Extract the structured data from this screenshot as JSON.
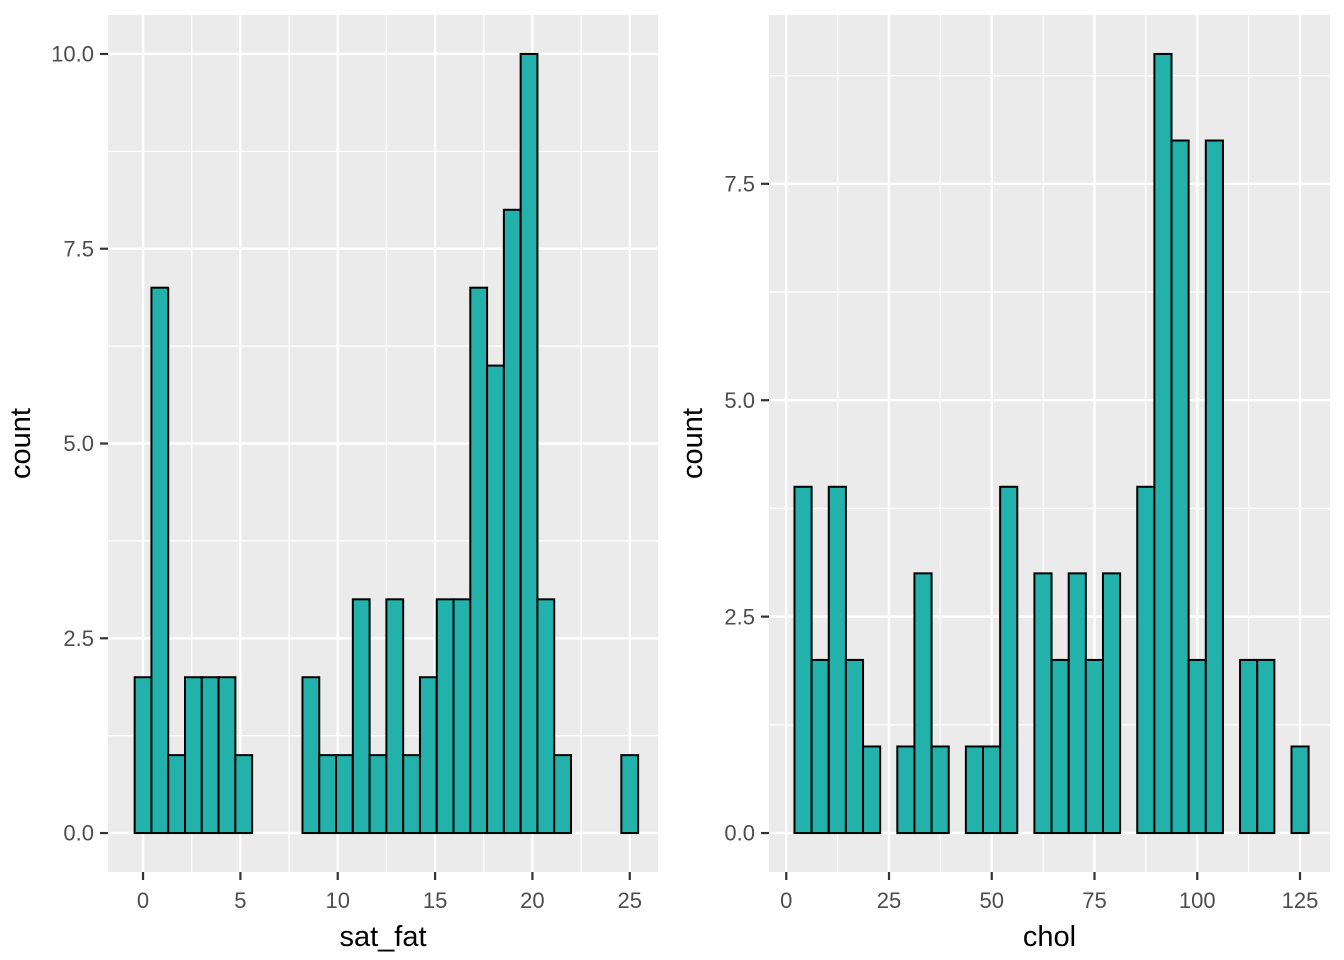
{
  "figure": {
    "description": "Two side-by-side ggplot-style histograms",
    "background": "#FFFFFF"
  },
  "theme": {
    "panel_background": "#EBEBEB",
    "grid_major_color": "#FFFFFF",
    "grid_minor_color": "#FFFFFF",
    "bar_fill": "#22B2AB",
    "bar_stroke": "#000000",
    "axis_tick_color": "#333333",
    "tick_label_color": "#4D4D4D",
    "axis_title_color": "#000000"
  },
  "chart_data": [
    {
      "type": "bar",
      "variant": "histogram",
      "title": "",
      "xlabel": "sat_fat",
      "ylabel": "count",
      "legend": "none",
      "grid": true,
      "bin_start": -0.431,
      "bin_width": 0.862,
      "counts": [
        2,
        7,
        1,
        2,
        2,
        2,
        1,
        0,
        0,
        0,
        2,
        1,
        1,
        3,
        1,
        3,
        1,
        2,
        3,
        3,
        7,
        6,
        8,
        10,
        3,
        1,
        0,
        0,
        0,
        1
      ],
      "n_total": 73,
      "x_major_ticks": [
        0,
        5,
        10,
        15,
        20,
        25
      ],
      "x_tick_labels": [
        "0",
        "5",
        "10",
        "15",
        "20",
        "25"
      ],
      "x_minor_ticks": [
        2.5,
        7.5,
        12.5,
        17.5,
        22.5
      ],
      "y_major_ticks": [
        0,
        2.5,
        5,
        7.5,
        10
      ],
      "y_tick_labels": [
        "0.0",
        "2.5",
        "5.0",
        "7.5",
        "10.0"
      ],
      "y_minor_ticks": [
        1.25,
        3.75,
        6.25,
        8.75
      ],
      "xlim": [
        -1.8,
        26.45
      ],
      "ylim": [
        -0.5,
        10.5
      ]
    },
    {
      "type": "bar",
      "variant": "histogram",
      "title": "",
      "xlabel": "chol",
      "ylabel": "count",
      "legend": "none",
      "grid": true,
      "bin_start": 2.0,
      "bin_width": 4.17,
      "counts": [
        4,
        2,
        4,
        2,
        1,
        0,
        1,
        3,
        1,
        0,
        1,
        1,
        4,
        0,
        3,
        2,
        3,
        2,
        3,
        0,
        4,
        9,
        8,
        2,
        8,
        0,
        2,
        2,
        0,
        1
      ],
      "n_total": 73,
      "x_major_ticks": [
        0,
        25,
        50,
        75,
        100,
        125
      ],
      "x_tick_labels": [
        "0",
        "25",
        "50",
        "75",
        "100",
        "125"
      ],
      "x_minor_ticks": [
        12.5,
        37.5,
        62.5,
        87.5,
        112.5
      ],
      "y_major_ticks": [
        0,
        2.5,
        5,
        7.5
      ],
      "y_tick_labels": [
        "0.0",
        "2.5",
        "5.0",
        "7.5"
      ],
      "y_minor_ticks": [
        1.25,
        3.75,
        6.25,
        8.75
      ],
      "xlim": [
        -4.2,
        132.3
      ],
      "ylim": [
        -0.45,
        9.45
      ]
    }
  ]
}
